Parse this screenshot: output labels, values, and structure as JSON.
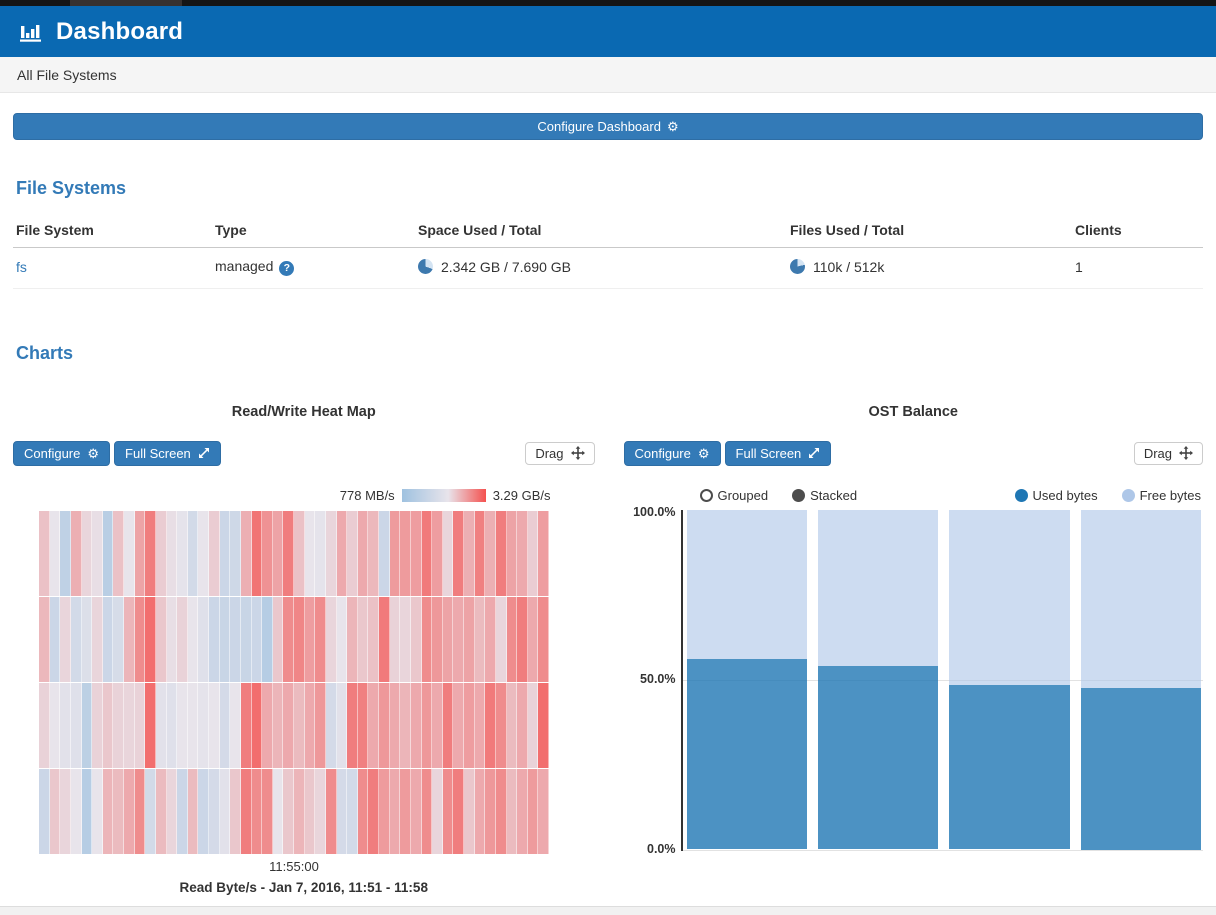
{
  "page": {
    "app_title": "Dashboard",
    "breadcrumb": "All File Systems",
    "configure_dashboard_label": "Configure Dashboard",
    "gear_glyph": "⚙"
  },
  "panel_buttons": {
    "configure": "Configure",
    "full_screen": "Full Screen",
    "drag": "Drag"
  },
  "file_systems": {
    "heading": "File Systems",
    "columns": [
      "File System",
      "Type",
      "Space Used / Total",
      "Files Used / Total",
      "Clients"
    ],
    "rows": [
      {
        "name": "fs",
        "type": "managed",
        "space_display": "2.342 GB / 7.690 GB",
        "space_used_gb": 2.342,
        "space_total_gb": 7.69,
        "files_display": "110k / 512k",
        "files_used_k": 110,
        "files_total_k": 512,
        "clients": "1"
      }
    ]
  },
  "charts_heading": "Charts",
  "colors": {
    "header_bar": "#0a69b2",
    "accent_blue": "#337ab7",
    "heat_low": "#9fc2e0",
    "heat_mid": "#e8e4eb",
    "heat_high": "#f4514f",
    "used_series": "#1f77b4",
    "free_series": "#aec7e8",
    "pie_base": "#3d79ae",
    "pie_wedge": "#d4e4f3"
  },
  "chart_data": [
    {
      "type": "heatmap",
      "title": "Read/Write Heat Map",
      "legend_min_label": "778 MB/s",
      "legend_max_label": "3.29 GB/s",
      "x_ticks": [
        "11:55:00"
      ],
      "caption": "Read Byte/s - Jan 7, 2016, 11:51 - 11:58",
      "rows": 4,
      "cols": 48,
      "values": [
        [
          0.62,
          0.5,
          0.22,
          0.68,
          0.55,
          0.52,
          0.18,
          0.62,
          0.5,
          0.72,
          0.85,
          0.58,
          0.52,
          0.48,
          0.35,
          0.5,
          0.58,
          0.3,
          0.32,
          0.68,
          0.88,
          0.78,
          0.72,
          0.85,
          0.62,
          0.5,
          0.48,
          0.55,
          0.7,
          0.58,
          0.7,
          0.65,
          0.3,
          0.75,
          0.75,
          0.74,
          0.86,
          0.74,
          0.55,
          0.85,
          0.68,
          0.84,
          0.68,
          0.85,
          0.72,
          0.7,
          0.58,
          0.74
        ],
        [
          0.65,
          0.3,
          0.55,
          0.35,
          0.42,
          0.55,
          0.3,
          0.38,
          0.66,
          0.8,
          0.9,
          0.6,
          0.52,
          0.56,
          0.5,
          0.44,
          0.3,
          0.28,
          0.3,
          0.28,
          0.3,
          0.16,
          0.6,
          0.8,
          0.82,
          0.74,
          0.8,
          0.55,
          0.5,
          0.66,
          0.6,
          0.62,
          0.86,
          0.56,
          0.55,
          0.6,
          0.8,
          0.76,
          0.72,
          0.7,
          0.72,
          0.64,
          0.7,
          0.55,
          0.8,
          0.85,
          0.7,
          0.8
        ],
        [
          0.56,
          0.5,
          0.46,
          0.44,
          0.2,
          0.56,
          0.6,
          0.56,
          0.55,
          0.56,
          0.9,
          0.46,
          0.44,
          0.5,
          0.5,
          0.48,
          0.5,
          0.36,
          0.5,
          0.85,
          0.9,
          0.7,
          0.66,
          0.7,
          0.64,
          0.7,
          0.76,
          0.36,
          0.46,
          0.85,
          0.84,
          0.7,
          0.76,
          0.7,
          0.66,
          0.7,
          0.76,
          0.7,
          0.85,
          0.7,
          0.74,
          0.7,
          0.86,
          0.8,
          0.64,
          0.7,
          0.56,
          0.9
        ],
        [
          0.3,
          0.6,
          0.55,
          0.5,
          0.16,
          0.5,
          0.66,
          0.64,
          0.7,
          0.8,
          0.35,
          0.64,
          0.55,
          0.3,
          0.64,
          0.3,
          0.36,
          0.46,
          0.6,
          0.85,
          0.8,
          0.8,
          0.5,
          0.6,
          0.66,
          0.6,
          0.55,
          0.8,
          0.36,
          0.35,
          0.8,
          0.85,
          0.75,
          0.7,
          0.75,
          0.7,
          0.8,
          0.55,
          0.8,
          0.85,
          0.6,
          0.7,
          0.76,
          0.8,
          0.64,
          0.7,
          0.75,
          0.7
        ]
      ]
    },
    {
      "type": "bar",
      "title": "OST Balance",
      "stacked": true,
      "modes": [
        "Grouped",
        "Stacked"
      ],
      "selected_mode": "Stacked",
      "categories": [
        "",
        "",
        "",
        ""
      ],
      "series": [
        {
          "name": "Used bytes",
          "color": "#1f77b4",
          "values": [
            56,
            54,
            48.5,
            47.5
          ]
        },
        {
          "name": "Free bytes",
          "color": "#aec7e8",
          "values": [
            44,
            46,
            51.5,
            52.5
          ]
        }
      ],
      "ylim": [
        0,
        100
      ],
      "y_ticks": [
        "100.0%",
        "50.0%",
        "0.0%"
      ],
      "legend_position": "top"
    }
  ]
}
